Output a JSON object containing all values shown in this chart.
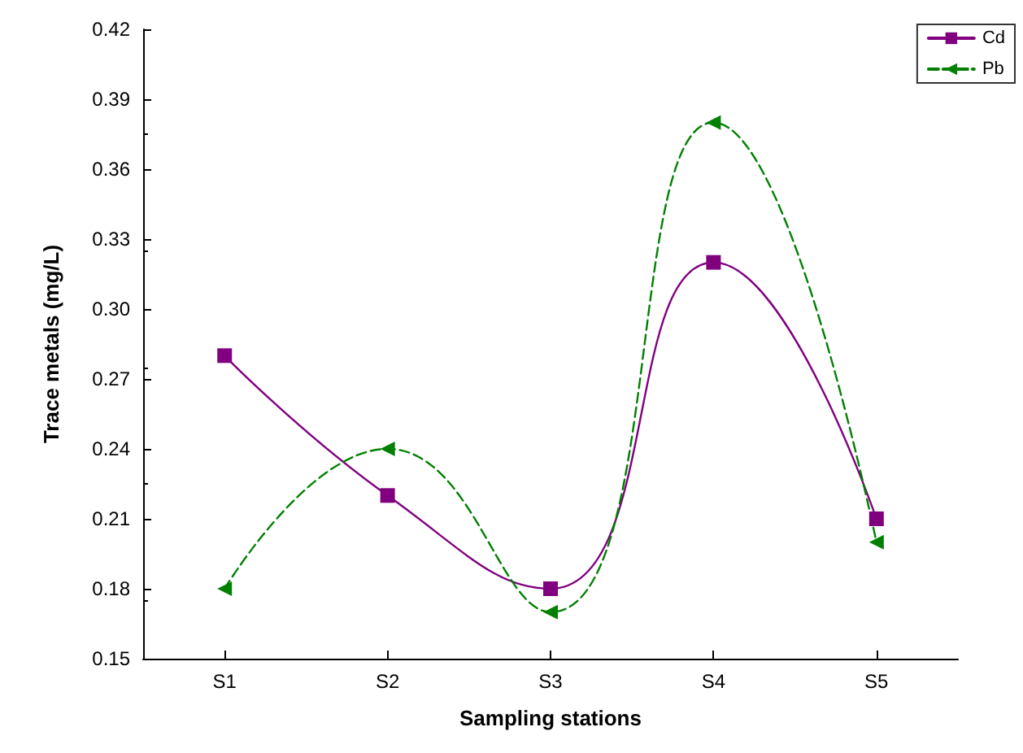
{
  "chart_data": {
    "type": "line",
    "xlabel": "Sampling stations",
    "ylabel": "Trace metals (mg/L)",
    "categories": [
      "S1",
      "S2",
      "S3",
      "S4",
      "S5"
    ],
    "series": [
      {
        "name": "Cd",
        "color": "#800080",
        "values": [
          0.28,
          0.22,
          0.18,
          0.32,
          0.21
        ],
        "marker": "square",
        "line_style": "solid"
      },
      {
        "name": "Pb",
        "color": "#008000",
        "values": [
          0.18,
          0.24,
          0.17,
          0.38,
          0.2
        ],
        "marker": "triangle",
        "line_style": "dashed"
      }
    ],
    "ylim": [
      0.15,
      0.42
    ],
    "yticks": [
      0.15,
      0.18,
      0.21,
      0.24,
      0.27,
      {
        "value": 0.3,
        "label": "0.30"
      },
      0.33,
      0.36,
      0.39,
      0.42
    ],
    "grid": false,
    "legend": "top right"
  }
}
